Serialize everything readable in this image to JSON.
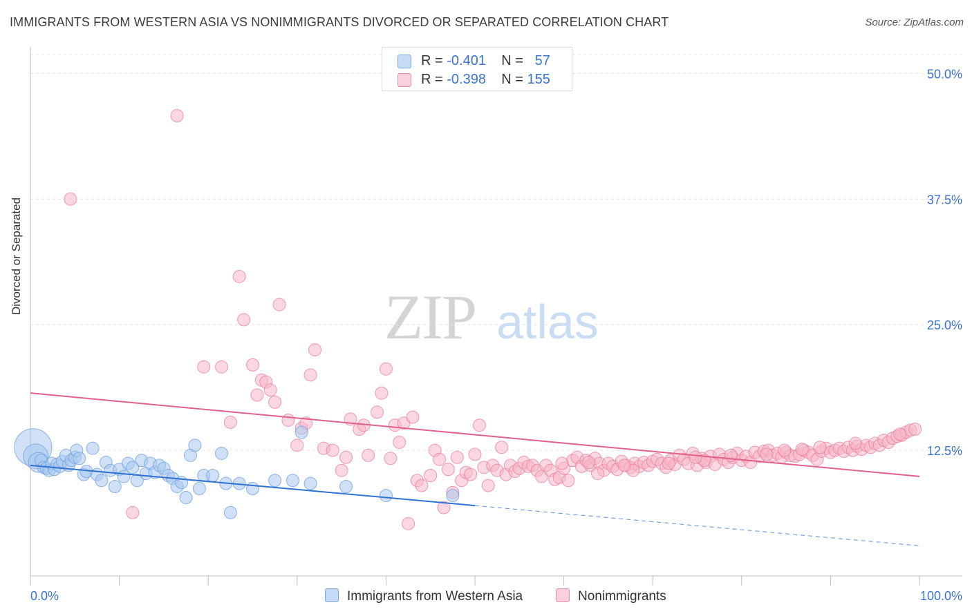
{
  "header": {
    "title": "IMMIGRANTS FROM WESTERN ASIA VS NONIMMIGRANTS DIVORCED OR SEPARATED CORRELATION CHART",
    "source": "Source: ZipAtlas.com"
  },
  "watermark": {
    "zip": "ZIP",
    "atlas": "atlas"
  },
  "legend": {
    "rows": [
      {
        "r_label": "R = ",
        "r_value": "-0.401",
        "n_label": "N = ",
        "n_value": "57",
        "color": "#a9c8f0"
      },
      {
        "r_label": "R = ",
        "r_value": "-0.398",
        "n_label": "N = ",
        "n_value": "155",
        "color": "#f7b6c8"
      }
    ]
  },
  "bottom_legend": {
    "items": [
      {
        "label": "Immigrants from Western Asia",
        "color": "#a9c8f0"
      },
      {
        "label": "Nonimmigrants",
        "color": "#f7b6c8"
      }
    ]
  },
  "chart_data": {
    "type": "scatter",
    "title": "IMMIGRANTS FROM WESTERN ASIA VS NONIMMIGRANTS DIVORCED OR SEPARATED CORRELATION CHART",
    "xlabel": "",
    "ylabel": "Divorced or Separated",
    "xlim": [
      0,
      100
    ],
    "ylim": [
      0,
      52.5
    ],
    "x_tick_labels": [
      "0.0%",
      "100.0%"
    ],
    "y_ticks": [
      12.5,
      25.0,
      37.5,
      50.0
    ],
    "y_tick_labels": [
      "12.5%",
      "25.0%",
      "37.5%",
      "50.0%"
    ],
    "grid": "horizontal dashed",
    "legend_position": "top-center",
    "series": [
      {
        "name": "Immigrants from Western Asia",
        "color": "#6fa0e0",
        "fill": "#a9c8f0",
        "trend": {
          "x0": 0,
          "y0": 11.0,
          "x1": 50,
          "y1": 7.0,
          "dashed_to_x": 100,
          "dashed_to_y": 3.0
        },
        "points": [
          [
            0.3,
            12.8,
            3
          ],
          [
            0.6,
            11.9,
            2
          ],
          [
            0.9,
            11.3,
            1.6
          ],
          [
            1.2,
            11.5,
            1
          ],
          [
            1.5,
            10.8,
            1
          ],
          [
            1.8,
            10.7,
            1
          ],
          [
            2.1,
            10.5,
            1
          ],
          [
            2.4,
            11.2,
            1
          ],
          [
            2.7,
            10.6,
            1
          ],
          [
            3.0,
            11.1,
            1
          ],
          [
            3.3,
            10.9,
            1
          ],
          [
            3.6,
            11.4,
            1
          ],
          [
            4.0,
            12.0,
            1
          ],
          [
            4.3,
            11.0,
            1
          ],
          [
            4.6,
            11.5,
            1
          ],
          [
            5.0,
            11.8,
            1
          ],
          [
            5.2,
            12.5,
            1
          ],
          [
            5.5,
            11.7,
            1
          ],
          [
            6.0,
            10.1,
            1
          ],
          [
            6.3,
            10.4,
            1
          ],
          [
            7.0,
            12.7,
            1
          ],
          [
            7.5,
            10.1,
            1
          ],
          [
            8.0,
            9.5,
            1
          ],
          [
            8.5,
            11.3,
            1
          ],
          [
            9.0,
            10.5,
            1
          ],
          [
            9.5,
            8.9,
            1
          ],
          [
            10.0,
            10.6,
            1
          ],
          [
            10.5,
            9.9,
            1
          ],
          [
            11.0,
            11.2,
            1
          ],
          [
            11.5,
            10.8,
            1
          ],
          [
            12.0,
            9.5,
            1
          ],
          [
            12.5,
            11.5,
            1
          ],
          [
            13.0,
            10.2,
            1
          ],
          [
            13.5,
            11.2,
            1
          ],
          [
            14.0,
            10.3,
            1
          ],
          [
            14.5,
            11.0,
            1
          ],
          [
            15.0,
            10.7,
            1
          ],
          [
            15.5,
            10.0,
            1
          ],
          [
            16.0,
            9.7,
            1
          ],
          [
            16.5,
            8.9,
            1
          ],
          [
            17.0,
            9.3,
            1
          ],
          [
            17.5,
            7.8,
            1
          ],
          [
            18.0,
            12.0,
            1
          ],
          [
            18.5,
            13.0,
            1
          ],
          [
            19.0,
            8.7,
            1
          ],
          [
            19.5,
            10.0,
            1
          ],
          [
            20.5,
            10.0,
            1
          ],
          [
            21.5,
            12.2,
            1
          ],
          [
            22.0,
            9.2,
            1
          ],
          [
            22.5,
            6.3,
            1
          ],
          [
            23.5,
            9.2,
            1
          ],
          [
            25.0,
            8.7,
            1
          ],
          [
            27.5,
            9.5,
            1
          ],
          [
            29.5,
            9.5,
            1
          ],
          [
            30.5,
            14.3,
            1
          ],
          [
            31.5,
            9.2,
            1
          ],
          [
            35.5,
            8.9,
            1
          ],
          [
            40.0,
            8.0,
            1
          ],
          [
            47.5,
            8.0,
            1
          ]
        ]
      },
      {
        "name": "Nonimmigrants",
        "color": "#e8799c",
        "fill": "#f7b6c8",
        "trend": {
          "x0": 0,
          "y0": 18.2,
          "x1": 100,
          "y1": 9.9
        },
        "points": [
          [
            4.5,
            37.5
          ],
          [
            16.5,
            45.8
          ],
          [
            11.5,
            6.3
          ],
          [
            19.5,
            20.8
          ],
          [
            21.5,
            20.8
          ],
          [
            22.5,
            15.3
          ],
          [
            23.5,
            29.8
          ],
          [
            24.0,
            25.5
          ],
          [
            25.0,
            21.0
          ],
          [
            25.5,
            18.0
          ],
          [
            26.0,
            19.5
          ],
          [
            26.5,
            19.3
          ],
          [
            27.0,
            18.5
          ],
          [
            27.5,
            17.3
          ],
          [
            28.0,
            27.0
          ],
          [
            29.0,
            15.5
          ],
          [
            30.0,
            13.0
          ],
          [
            30.5,
            14.7
          ],
          [
            31.0,
            15.2
          ],
          [
            31.5,
            20.0
          ],
          [
            32.0,
            22.5
          ],
          [
            33.0,
            12.7
          ],
          [
            34.0,
            12.5
          ],
          [
            35.0,
            10.5
          ],
          [
            35.5,
            11.8
          ],
          [
            36.0,
            15.6
          ],
          [
            37.0,
            14.6
          ],
          [
            37.5,
            15.0
          ],
          [
            38.0,
            12.0
          ],
          [
            39.0,
            16.3
          ],
          [
            39.5,
            18.2
          ],
          [
            40.0,
            20.6
          ],
          [
            40.5,
            11.7
          ],
          [
            41.0,
            15.0
          ],
          [
            41.5,
            13.3
          ],
          [
            42.0,
            15.2
          ],
          [
            42.5,
            5.2
          ],
          [
            43.0,
            15.8
          ],
          [
            43.5,
            9.5
          ],
          [
            44.0,
            9.0
          ],
          [
            45.0,
            10.0
          ],
          [
            45.5,
            12.5
          ],
          [
            46.0,
            11.6
          ],
          [
            46.5,
            6.8
          ],
          [
            47.0,
            10.6
          ],
          [
            47.5,
            8.3
          ],
          [
            48.0,
            11.8
          ],
          [
            48.5,
            9.5
          ],
          [
            49.0,
            10.3
          ],
          [
            49.5,
            10.1
          ],
          [
            50.0,
            12.1
          ],
          [
            50.5,
            15.0
          ],
          [
            51.0,
            10.8
          ],
          [
            51.5,
            9.0
          ],
          [
            52.0,
            11.0
          ],
          [
            52.5,
            10.5
          ],
          [
            53.0,
            12.8
          ],
          [
            53.5,
            10.1
          ],
          [
            54.0,
            11.0
          ],
          [
            54.5,
            10.4
          ],
          [
            55.0,
            10.7
          ],
          [
            55.5,
            11.3
          ],
          [
            56.0,
            10.9
          ],
          [
            56.5,
            11.0
          ],
          [
            57.0,
            10.5
          ],
          [
            57.5,
            9.9
          ],
          [
            58.0,
            11.0
          ],
          [
            58.5,
            10.5
          ],
          [
            59.0,
            9.6
          ],
          [
            59.5,
            9.8
          ],
          [
            60.0,
            10.7
          ],
          [
            60.5,
            9.5
          ],
          [
            61.0,
            11.5
          ],
          [
            61.5,
            11.8
          ],
          [
            62.0,
            10.9
          ],
          [
            62.5,
            11.5
          ],
          [
            63.0,
            11.0
          ],
          [
            63.5,
            11.7
          ],
          [
            64.0,
            11.2
          ],
          [
            64.5,
            10.5
          ],
          [
            65.0,
            11.2
          ],
          [
            65.5,
            10.9
          ],
          [
            66.0,
            10.6
          ],
          [
            66.5,
            11.4
          ],
          [
            67.0,
            11.0
          ],
          [
            67.5,
            10.8
          ],
          [
            68.0,
            11.2
          ],
          [
            68.5,
            10.9
          ],
          [
            69.0,
            11.3
          ],
          [
            69.5,
            11.0
          ],
          [
            70.0,
            11.4
          ],
          [
            70.5,
            11.6
          ],
          [
            71.0,
            11.2
          ],
          [
            71.5,
            10.8
          ],
          [
            72.0,
            11.5
          ],
          [
            72.5,
            11.1
          ],
          [
            73.0,
            12.0
          ],
          [
            73.5,
            11.6
          ],
          [
            74.0,
            11.2
          ],
          [
            74.5,
            12.2
          ],
          [
            75.0,
            11.0
          ],
          [
            75.5,
            11.7
          ],
          [
            76.0,
            11.3
          ],
          [
            76.5,
            11.9
          ],
          [
            77.0,
            11.1
          ],
          [
            77.5,
            12.1
          ],
          [
            78.0,
            11.6
          ],
          [
            78.5,
            11.3
          ],
          [
            79.0,
            11.8
          ],
          [
            79.5,
            12.2
          ],
          [
            80.0,
            11.5
          ],
          [
            80.5,
            11.9
          ],
          [
            81.0,
            11.3
          ],
          [
            81.5,
            12.3
          ],
          [
            82.0,
            11.9
          ],
          [
            82.5,
            12.4
          ],
          [
            83.0,
            12.5
          ],
          [
            83.5,
            12.0
          ],
          [
            84.0,
            12.2
          ],
          [
            84.5,
            11.8
          ],
          [
            85.0,
            12.3
          ],
          [
            85.5,
            12.0
          ],
          [
            86.0,
            11.9
          ],
          [
            86.5,
            12.1
          ],
          [
            87.0,
            12.5
          ],
          [
            87.5,
            12.3
          ],
          [
            88.0,
            12.0
          ],
          [
            88.5,
            11.6
          ],
          [
            89.0,
            12.4
          ],
          [
            89.5,
            12.7
          ],
          [
            90.0,
            12.3
          ],
          [
            90.5,
            12.5
          ],
          [
            91.0,
            12.7
          ],
          [
            91.5,
            12.4
          ],
          [
            92.0,
            12.8
          ],
          [
            92.5,
            12.5
          ],
          [
            93.0,
            12.9
          ],
          [
            93.5,
            12.6
          ],
          [
            94.0,
            13.0
          ],
          [
            94.5,
            12.8
          ],
          [
            95.0,
            13.2
          ],
          [
            95.5,
            13.0
          ],
          [
            96.0,
            13.5
          ],
          [
            96.5,
            13.3
          ],
          [
            97.0,
            13.7
          ],
          [
            97.5,
            13.9
          ],
          [
            98.0,
            14.0
          ],
          [
            98.5,
            14.3
          ],
          [
            99.0,
            14.5
          ],
          [
            99.5,
            14.6
          ],
          [
            59.8,
            11.2
          ],
          [
            63.8,
            10.2
          ],
          [
            67.8,
            10.5
          ],
          [
            71.8,
            11.2
          ],
          [
            75.8,
            11.5
          ],
          [
            78.8,
            12.0
          ],
          [
            84.8,
            12.5
          ],
          [
            88.8,
            12.8
          ],
          [
            92.8,
            13.2
          ],
          [
            97.8,
            14.1
          ],
          [
            62.8,
            11.3
          ],
          [
            66.8,
            11.0
          ],
          [
            74.8,
            11.8
          ],
          [
            82.8,
            12.1
          ],
          [
            86.8,
            12.6
          ]
        ]
      }
    ]
  }
}
